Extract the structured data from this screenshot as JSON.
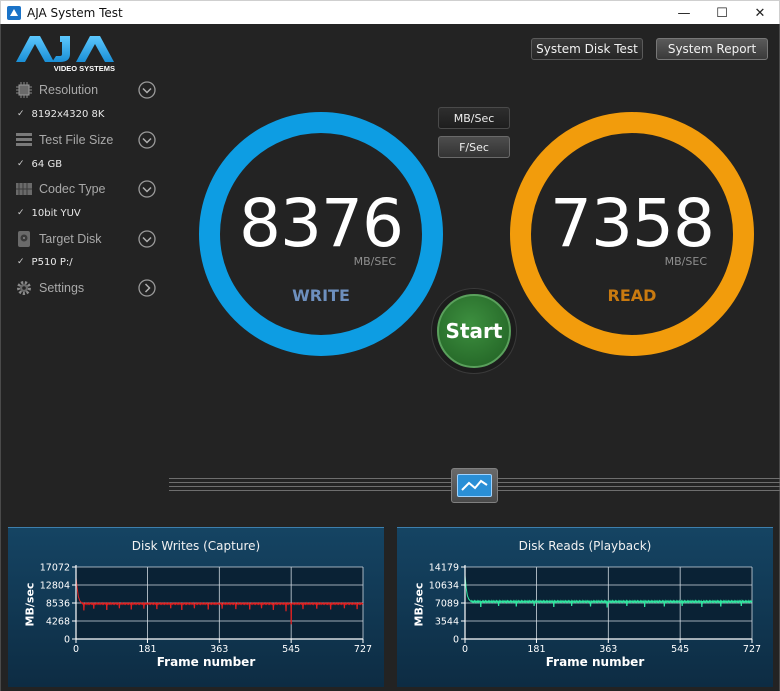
{
  "window": {
    "title": "AJA System Test",
    "minimize": "—",
    "maximize": "☐",
    "close": "✕"
  },
  "logo": {
    "brand": "AJA",
    "tagline": "VIDEO SYSTEMS"
  },
  "sidebar": {
    "items": [
      {
        "label": "Resolution",
        "value": "8192x4320 8K",
        "icon": "resolution-icon"
      },
      {
        "label": "Test File Size",
        "value": "64 GB",
        "icon": "file-size-icon"
      },
      {
        "label": "Codec Type",
        "value": "10bit YUV",
        "icon": "codec-icon"
      },
      {
        "label": "Target Disk",
        "value": "P510 P:/",
        "icon": "disk-icon"
      },
      {
        "label": "Settings",
        "icon": "gear-icon"
      }
    ]
  },
  "toolbar": {
    "system_disk_test": "System Disk Test",
    "system_report": "System Report"
  },
  "units": {
    "mbsec": "MB/Sec",
    "fsec": "F/Sec",
    "active": "fsec"
  },
  "write": {
    "value": "8376",
    "unit": "MB/SEC",
    "label": "WRITE",
    "color": "#0d9de3"
  },
  "read": {
    "value": "7358",
    "unit": "MB/SEC",
    "label": "READ",
    "color": "#f29c0c"
  },
  "start_label": "Start",
  "colors": {
    "write_label": "#6d8fbd",
    "read_label": "#c97a10",
    "start_green": "#2f7d32"
  },
  "chart_data": [
    {
      "type": "line",
      "title": "Disk Writes (Capture)",
      "xlabel": "Frame number",
      "ylabel": "MB/sec",
      "x_ticks": [
        "0",
        "181",
        "363",
        "545",
        "727"
      ],
      "y_ticks": [
        "0",
        "4268",
        "8536",
        "12804",
        "17072"
      ],
      "xlim": [
        0,
        727
      ],
      "ylim": [
        0,
        17072
      ],
      "series": [
        {
          "color": "#e02020",
          "initial": [
            [
              0,
              14500
            ],
            [
              3,
              12000
            ],
            [
              6,
              10000
            ],
            [
              10,
              9000
            ],
            [
              16,
              8400
            ]
          ],
          "steady": 8376,
          "dips": [
            [
              20,
              6800
            ],
            [
              45,
              7200
            ],
            [
              78,
              6900
            ],
            [
              110,
              7300
            ],
            [
              140,
              7000
            ],
            [
              172,
              7200
            ],
            [
              205,
              7100
            ],
            [
              240,
              7300
            ],
            [
              268,
              6900
            ],
            [
              300,
              7300
            ],
            [
              335,
              7000
            ],
            [
              370,
              7200
            ],
            [
              405,
              7100
            ],
            [
              440,
              7000
            ],
            [
              470,
              7300
            ],
            [
              500,
              6900
            ],
            [
              532,
              6600
            ],
            [
              545,
              3500
            ],
            [
              575,
              7100
            ],
            [
              610,
              7200
            ],
            [
              645,
              7000
            ],
            [
              680,
              7300
            ],
            [
              712,
              7100
            ]
          ]
        }
      ]
    },
    {
      "type": "line",
      "title": "Disk Reads (Playback)",
      "xlabel": "Frame number",
      "ylabel": "MB/sec",
      "x_ticks": [
        "0",
        "181",
        "363",
        "545",
        "727"
      ],
      "y_ticks": [
        "0",
        "3544",
        "7089",
        "10634",
        "14179"
      ],
      "xlim": [
        0,
        727
      ],
      "ylim": [
        0,
        14179
      ],
      "series": [
        {
          "color": "#2ee8a0",
          "initial": [
            [
              0,
              12500
            ],
            [
              3,
              10000
            ],
            [
              6,
              8500
            ],
            [
              10,
              7800
            ],
            [
              15,
              7400
            ]
          ],
          "steady": 7358,
          "dips": [
            [
              40,
              6300
            ],
            [
              85,
              6500
            ],
            [
              130,
              6400
            ],
            [
              175,
              6500
            ],
            [
              225,
              6300
            ],
            [
              270,
              6500
            ],
            [
              318,
              6400
            ],
            [
              360,
              6200
            ],
            [
              410,
              6500
            ],
            [
              455,
              6300
            ],
            [
              505,
              6400
            ],
            [
              550,
              6500
            ],
            [
              600,
              6300
            ],
            [
              648,
              6400
            ],
            [
              700,
              6500
            ]
          ]
        }
      ]
    }
  ]
}
